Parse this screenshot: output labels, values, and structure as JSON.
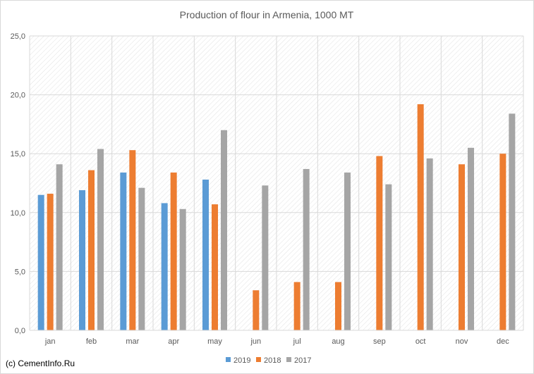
{
  "chart_data": {
    "type": "bar",
    "title": "Production of flour in Armenia, 1000 MT",
    "categories": [
      "jan",
      "feb",
      "mar",
      "apr",
      "may",
      "jun",
      "jul",
      "aug",
      "sep",
      "oct",
      "nov",
      "dec"
    ],
    "series": [
      {
        "name": "2019",
        "color": "#5b9bd5",
        "values": [
          11.5,
          11.9,
          13.4,
          10.8,
          12.8,
          null,
          null,
          null,
          null,
          null,
          null,
          null
        ]
      },
      {
        "name": "2018",
        "color": "#ed7d31",
        "values": [
          11.6,
          13.6,
          15.3,
          13.4,
          10.7,
          3.4,
          4.1,
          4.1,
          14.8,
          19.2,
          14.1,
          15.0
        ]
      },
      {
        "name": "2017",
        "color": "#a5a5a5",
        "values": [
          14.1,
          15.4,
          12.1,
          10.3,
          17.0,
          12.3,
          13.7,
          13.4,
          12.4,
          14.6,
          15.5,
          18.4
        ]
      }
    ],
    "yticks": [
      "0,0",
      "5,0",
      "10,0",
      "15,0",
      "20,0",
      "25,0"
    ],
    "ylim": [
      0,
      25
    ],
    "grid": true,
    "legend_position": "bottom"
  },
  "footer": {
    "copyright": "(c) CementInfo.Ru"
  }
}
